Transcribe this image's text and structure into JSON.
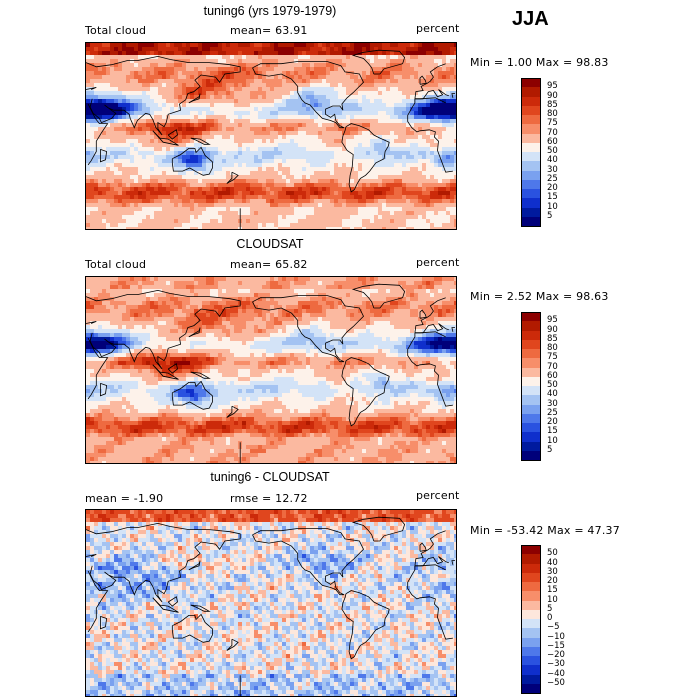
{
  "season": "JJA",
  "panels": [
    {
      "id": "model",
      "title": "tuning6 (yrs 1979-1979)",
      "left_label": "Total cloud",
      "mid_label": "mean=  63.91",
      "units": "percent",
      "stats": "Min =   1.00 Max =  98.83",
      "levels": [
        "95",
        "90",
        "85",
        "80",
        "75",
        "70",
        "60",
        "50",
        "40",
        "30",
        "25",
        "20",
        "15",
        "10",
        "5"
      ],
      "palette": [
        "#8c0000",
        "#b11a00",
        "#cc2a0a",
        "#e0461e",
        "#ee6a40",
        "#f78e6a",
        "#fbb9a0",
        "#fdf2ea",
        "#d3e3f7",
        "#a4c3f2",
        "#7aa1ef",
        "#4e78ea",
        "#2a52e0",
        "#0f2fcc",
        "#001a9e",
        "#00007a"
      ],
      "scheme": "cloud"
    },
    {
      "id": "obs",
      "title": "CLOUDSAT",
      "left_label": "Total cloud",
      "mid_label": "mean=  65.82",
      "units": "percent",
      "stats": "Min =   2.52 Max =  98.63",
      "levels": [
        "95",
        "90",
        "85",
        "80",
        "75",
        "70",
        "60",
        "50",
        "40",
        "30",
        "25",
        "20",
        "15",
        "10",
        "5"
      ],
      "palette": [
        "#8c0000",
        "#b11a00",
        "#cc2a0a",
        "#e0461e",
        "#ee6a40",
        "#f78e6a",
        "#fbb9a0",
        "#fdf2ea",
        "#d3e3f7",
        "#a4c3f2",
        "#7aa1ef",
        "#4e78ea",
        "#2a52e0",
        "#0f2fcc",
        "#001a9e",
        "#00007a"
      ],
      "scheme": "cloud"
    },
    {
      "id": "diff",
      "title": "tuning6 - CLOUDSAT",
      "left_label": "mean =   -1.90",
      "mid_label": "rmse =  12.72",
      "units": "percent",
      "stats": "Min = -53.42 Max =  47.37",
      "levels": [
        "50",
        "40",
        "30",
        "20",
        "15",
        "10",
        "5",
        "0",
        "−5",
        "−10",
        "−15",
        "−20",
        "−30",
        "−40",
        "−50"
      ],
      "palette": [
        "#8c0000",
        "#b11a00",
        "#cc2a0a",
        "#e0461e",
        "#ee6a40",
        "#f78e6a",
        "#fbb9a0",
        "#fde7dc",
        "#d3e3f7",
        "#a4c3f2",
        "#7aa1ef",
        "#4e78ea",
        "#2a52e0",
        "#0f2fcc",
        "#001a9e",
        "#00007a"
      ],
      "scheme": "diff"
    }
  ]
}
